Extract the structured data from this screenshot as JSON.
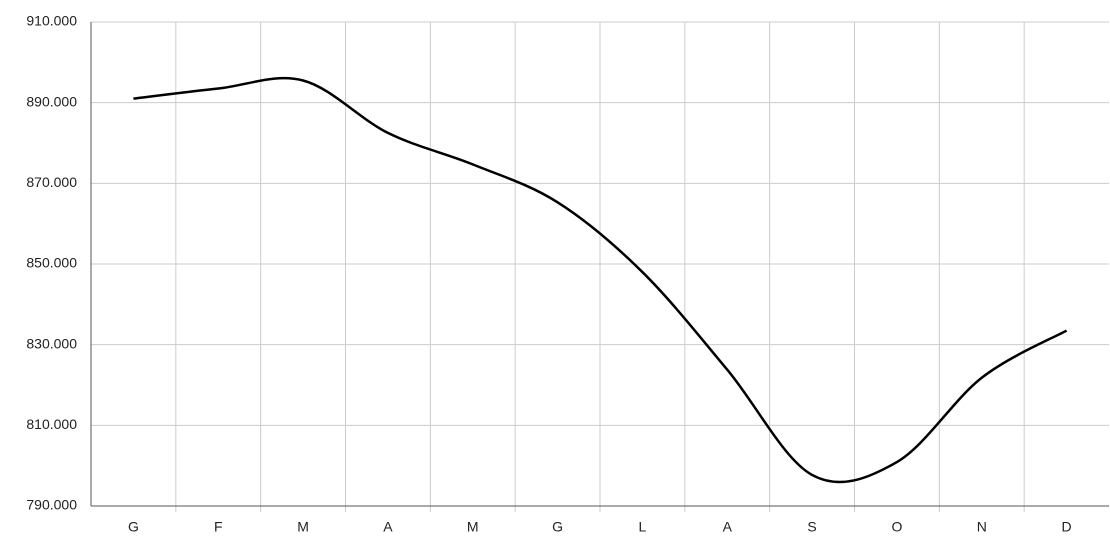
{
  "chart_data": {
    "type": "line",
    "categories": [
      "G",
      "F",
      "M",
      "A",
      "M",
      "G",
      "L",
      "A",
      "S",
      "O",
      "N",
      "D"
    ],
    "values": [
      891000,
      893500,
      895500,
      882500,
      874700,
      865300,
      848000,
      823800,
      797700,
      800900,
      821800,
      833500
    ],
    "color": "#000000",
    "smooth": true,
    "grid": true,
    "ylim": [
      790000,
      910000
    ],
    "yticks": [
      {
        "value": 790000,
        "label": "790.000"
      },
      {
        "value": 810000,
        "label": "810.000"
      },
      {
        "value": 830000,
        "label": "830.000"
      },
      {
        "value": 850000,
        "label": "850.000"
      },
      {
        "value": 870000,
        "label": "870.000"
      },
      {
        "value": 890000,
        "label": "890.000"
      },
      {
        "value": 910000,
        "label": "910.000"
      }
    ]
  }
}
